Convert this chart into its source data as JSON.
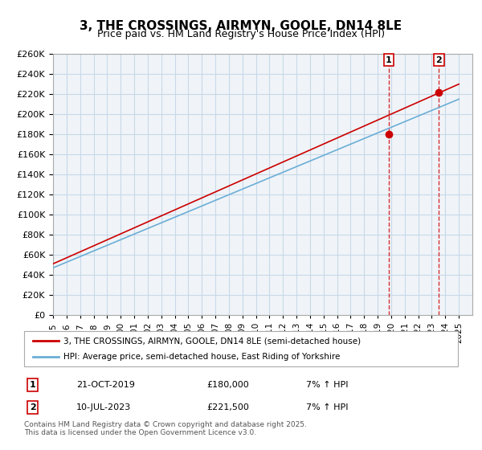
{
  "title": "3, THE CROSSINGS, AIRMYN, GOOLE, DN14 8LE",
  "subtitle": "Price paid vs. HM Land Registry's House Price Index (HPI)",
  "legend1": "3, THE CROSSINGS, AIRMYN, GOOLE, DN14 8LE (semi-detached house)",
  "legend2": "HPI: Average price, semi-detached house, East Riding of Yorkshire",
  "annotation1_label": "1",
  "annotation1_date": "21-OCT-2019",
  "annotation1_price": "£180,000",
  "annotation1_hpi": "7% ↑ HPI",
  "annotation2_label": "2",
  "annotation2_date": "10-JUL-2023",
  "annotation2_price": "£221,500",
  "annotation2_hpi": "7% ↑ HPI",
  "footer": "Contains HM Land Registry data © Crown copyright and database right 2025.\nThis data is licensed under the Open Government Licence v3.0.",
  "marker1_year": 2019.8,
  "marker1_value": 180000,
  "marker2_year": 2023.53,
  "marker2_value": 221500,
  "hpi_color": "#6baed6",
  "price_color": "#cc0000",
  "marker_color": "#cc0000",
  "vline_color": "#cc0000",
  "grid_color": "#c8d8e8",
  "bg_color": "#f0f4f8",
  "plot_bg": "#ffffff",
  "ylim": [
    0,
    260000
  ],
  "yticks": [
    0,
    20000,
    40000,
    60000,
    80000,
    100000,
    120000,
    140000,
    160000,
    180000,
    200000,
    220000,
    240000,
    260000
  ],
  "xlim_start": 1995,
  "xlim_end": 2026
}
